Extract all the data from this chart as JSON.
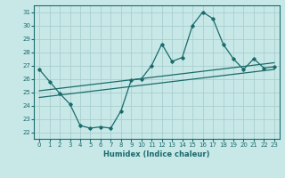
{
  "title": "",
  "xlabel": "Humidex (Indice chaleur)",
  "ylabel": "",
  "bg_color": "#c8e8e8",
  "grid_color": "#a8cece",
  "line_color": "#1a6b6b",
  "xlim": [
    -0.5,
    23.5
  ],
  "ylim": [
    21.5,
    31.5
  ],
  "xticks": [
    0,
    1,
    2,
    3,
    4,
    5,
    6,
    7,
    8,
    9,
    10,
    11,
    12,
    13,
    14,
    15,
    16,
    17,
    18,
    19,
    20,
    21,
    22,
    23
  ],
  "yticks": [
    22,
    23,
    24,
    25,
    26,
    27,
    28,
    29,
    30,
    31
  ],
  "main_x": [
    0,
    1,
    2,
    3,
    4,
    5,
    6,
    7,
    8,
    9,
    10,
    11,
    12,
    13,
    14,
    15,
    16,
    17,
    18,
    19,
    20,
    21,
    22,
    23
  ],
  "main_y": [
    26.7,
    25.8,
    24.9,
    24.1,
    22.5,
    22.3,
    22.4,
    22.3,
    23.6,
    25.9,
    26.0,
    27.0,
    28.6,
    27.3,
    27.6,
    30.0,
    31.0,
    30.5,
    28.6,
    27.5,
    26.7,
    27.5,
    26.8,
    26.9
  ],
  "trend1_x": [
    0,
    23
  ],
  "trend1_y": [
    25.1,
    27.2
  ],
  "trend2_x": [
    0,
    23
  ],
  "trend2_y": [
    24.6,
    26.7
  ]
}
